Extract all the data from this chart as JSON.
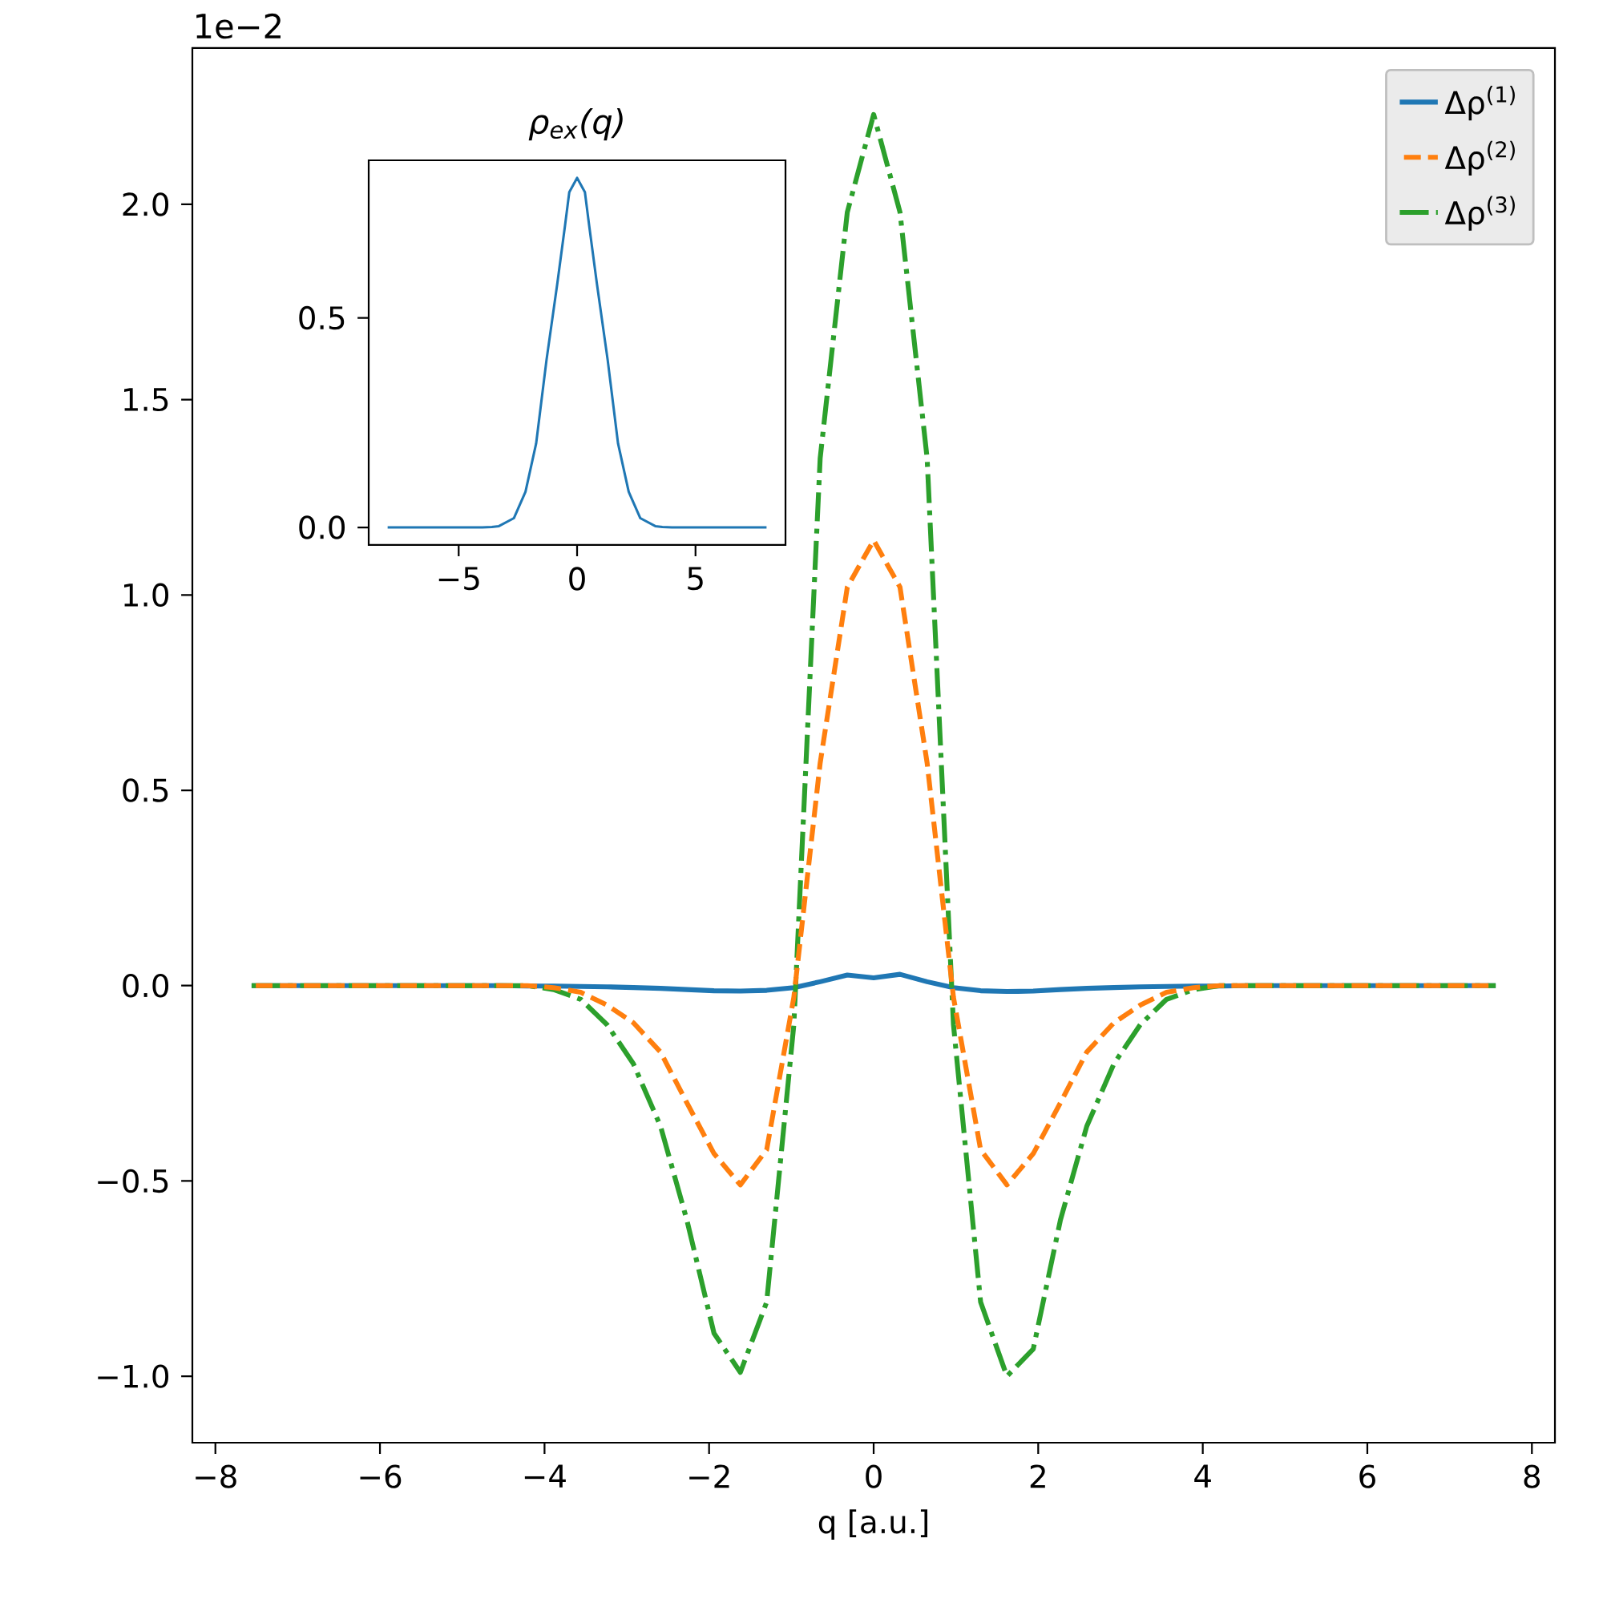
{
  "chart_data": [
    {
      "type": "line",
      "xlabel": "q [a.u.]",
      "annotations": [
        "1e−2"
      ],
      "x": [
        -7.56,
        -6.48,
        -5.4,
        -4.54,
        -4.21,
        -3.89,
        -3.56,
        -3.24,
        -2.92,
        -2.59,
        -2.27,
        -1.94,
        -1.62,
        -1.3,
        -0.97,
        -0.65,
        -0.32,
        0,
        0.32,
        0.65,
        0.97,
        1.3,
        1.62,
        1.94,
        2.27,
        2.59,
        2.92,
        3.24,
        3.56,
        3.89,
        4.21,
        4.54,
        5.4,
        6.48,
        7.56
      ],
      "series": [
        {
          "name": "Δρ$^{(1)}$",
          "color": "#1f77b4",
          "line_style": "solid",
          "values": [
            0,
            0,
            0,
            0,
            -0.001,
            -0.001,
            -0.002,
            -0.003,
            -0.005,
            -0.007,
            -0.01,
            -0.013,
            -0.014,
            -0.012,
            -0.005,
            0.01,
            0.027,
            0.02,
            0.029,
            0.01,
            -0.005,
            -0.013,
            -0.015,
            -0.014,
            -0.01,
            -0.007,
            -0.005,
            -0.003,
            -0.002,
            -0.001,
            -0.001,
            0,
            0,
            0,
            0
          ]
        },
        {
          "name": "Δρ$^{(2)}$",
          "color": "#ff7f0e",
          "line_style": "dashed",
          "values": [
            0,
            0,
            0,
            0,
            0,
            -0.005,
            -0.017,
            -0.05,
            -0.095,
            -0.17,
            -0.3,
            -0.43,
            -0.51,
            -0.42,
            -0.03,
            0.57,
            1.02,
            1.14,
            1.02,
            0.57,
            -0.03,
            -0.42,
            -0.51,
            -0.43,
            -0.3,
            -0.17,
            -0.095,
            -0.05,
            -0.017,
            -0.005,
            0,
            0,
            0,
            0,
            0
          ]
        },
        {
          "name": "Δρ$^{(3)}$",
          "color": "#2ca02c",
          "line_style": "dashdot",
          "values": [
            0,
            0,
            0,
            0,
            0,
            -0.01,
            -0.035,
            -0.1,
            -0.2,
            -0.36,
            -0.6,
            -0.89,
            -0.99,
            -0.81,
            -0.1,
            1.35,
            1.98,
            2.23,
            1.98,
            1.35,
            -0.1,
            -0.81,
            -1.0,
            -0.93,
            -0.6,
            -0.36,
            -0.2,
            -0.1,
            -0.035,
            -0.01,
            0,
            0,
            0,
            0,
            0
          ]
        }
      ],
      "xlim": [
        -8.28,
        8.28
      ],
      "ylim": [
        -1.17,
        2.4
      ],
      "xticks": [
        {
          "value": -8,
          "label": "−8"
        },
        {
          "value": -6,
          "label": "−6"
        },
        {
          "value": -4,
          "label": "−4"
        },
        {
          "value": -2,
          "label": "−2"
        },
        0,
        2,
        4,
        6,
        8
      ],
      "yticks": [
        {
          "value": -1,
          "label": "−1.0"
        },
        {
          "value": -0.5,
          "label": "−0.5"
        },
        {
          "value": 0,
          "label": "0.0"
        },
        {
          "value": 0.5,
          "label": "0.5"
        },
        {
          "value": 1,
          "label": "1.0"
        },
        {
          "value": 1.5,
          "label": "1.5"
        },
        {
          "value": 2,
          "label": "2.0"
        }
      ],
      "legend": "top right",
      "grid": false
    },
    {
      "type": "line",
      "title": "ρ$_{ex}$(q)",
      "x": [
        -8,
        -6,
        -4,
        -3.6,
        -3.3,
        -2.67,
        -2.18,
        -1.73,
        -1.29,
        -0.84,
        -0.51,
        -0.33,
        0,
        0.33,
        0.51,
        0.84,
        1.29,
        1.73,
        2.18,
        2.67,
        3.3,
        3.6,
        4,
        6,
        8
      ],
      "series": [
        {
          "color": "#1f77b4",
          "line_style": "solid",
          "values": [
            0,
            0,
            0,
            0.001,
            0.003,
            0.022,
            0.085,
            0.2,
            0.4,
            0.58,
            0.72,
            0.8,
            0.834,
            0.8,
            0.72,
            0.58,
            0.4,
            0.2,
            0.085,
            0.022,
            0.003,
            0.001,
            0,
            0,
            0
          ]
        }
      ],
      "xlim": [
        -8.8,
        8.8
      ],
      "ylim": [
        -0.042,
        0.876
      ],
      "xticks": [
        {
          "value": -5,
          "label": "−5"
        },
        0,
        5
      ],
      "yticks": [
        {
          "value": 0,
          "label": "0.0"
        },
        {
          "value": 0.5,
          "label": "0.5"
        }
      ],
      "legend": false,
      "grid": false
    }
  ]
}
